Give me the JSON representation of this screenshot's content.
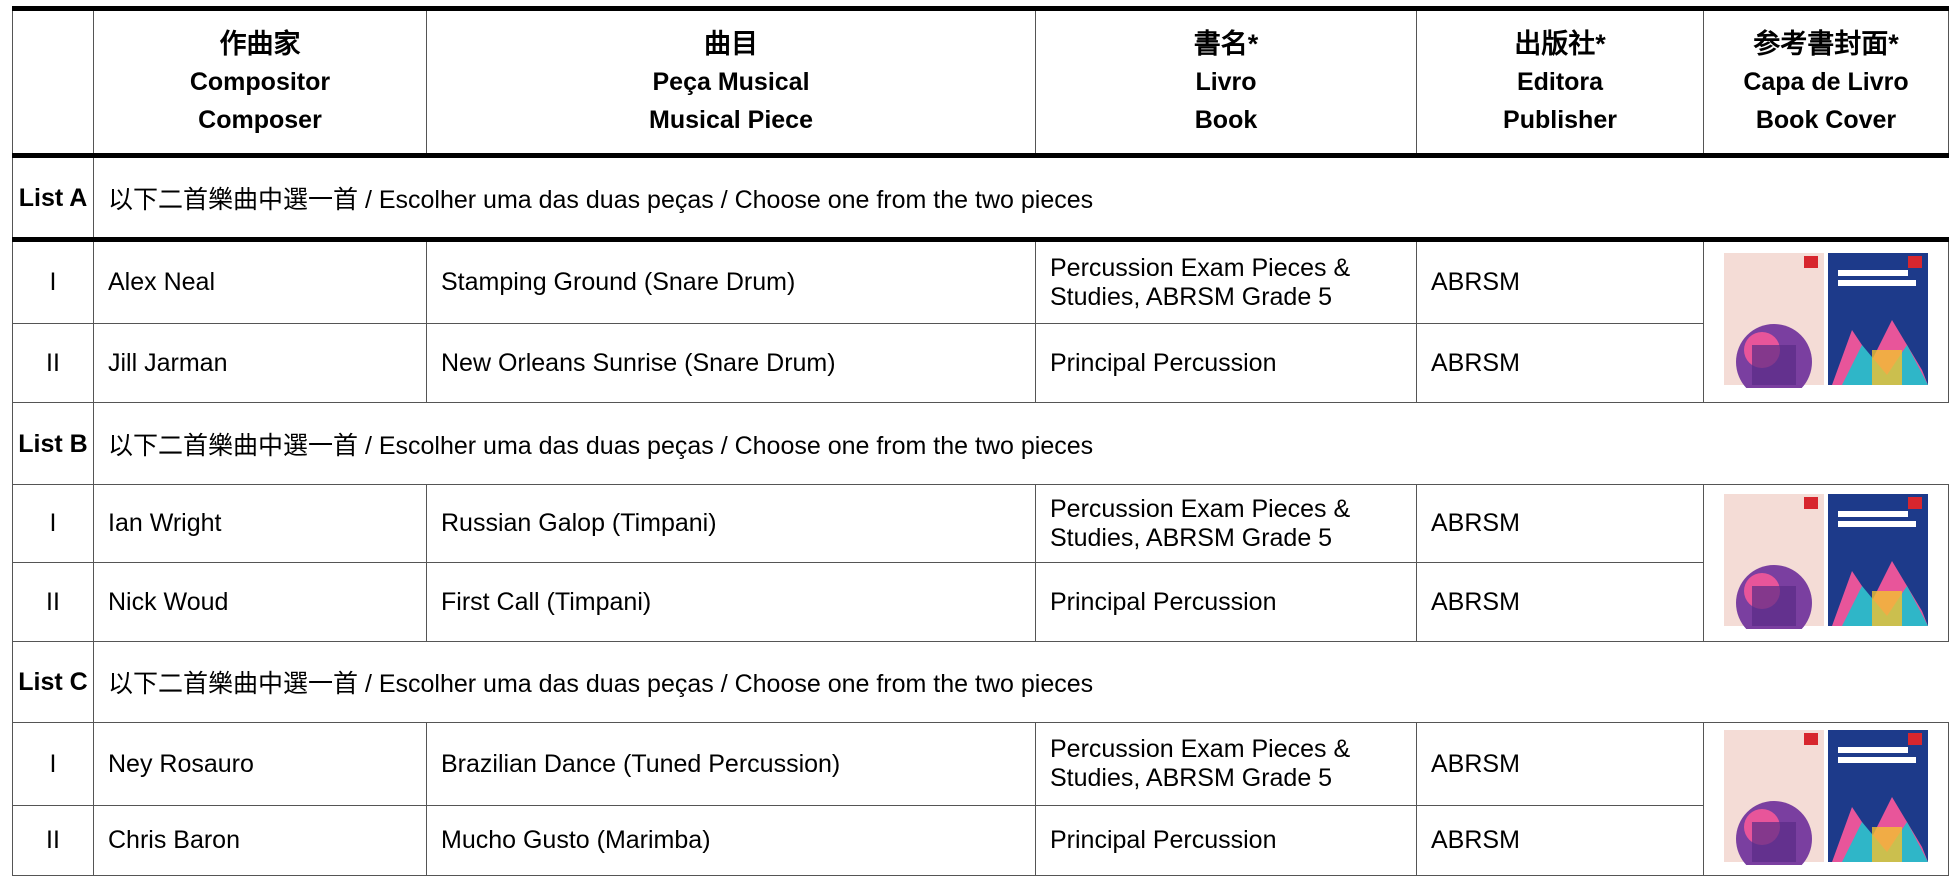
{
  "header": {
    "columns": [
      {
        "zh": "作曲家",
        "pt": "Compositor",
        "en": "Composer"
      },
      {
        "zh": "曲目",
        "pt": "Peça Musical",
        "en": "Musical Piece"
      },
      {
        "zh": "書名*",
        "pt": "Livro",
        "en": "Book"
      },
      {
        "zh": "出版社*",
        "pt": "Editora",
        "en": "Publisher"
      },
      {
        "zh": "参考書封面*",
        "pt": "Capa de Livro",
        "en": "Book Cover"
      }
    ]
  },
  "sections": [
    {
      "label": "List A",
      "instruction": "以下二首樂曲中選一首 / Escolher uma das duas peças / Choose one from the two pieces",
      "rows": [
        [
          "I",
          "Alex Neal",
          "Stamping Ground (Snare Drum)",
          "Percussion Exam Pieces & Studies, ABRSM Grade 5",
          "ABRSM"
        ],
        [
          "II",
          "Jill Jarman",
          "New Orleans Sunrise (Snare Drum)",
          "Principal Percussion",
          "ABRSM"
        ]
      ]
    },
    {
      "label": "List B",
      "instruction": "以下二首樂曲中選一首 / Escolher uma das duas peças / Choose one from the two pieces",
      "rows": [
        [
          "I",
          "Ian Wright",
          "Russian Galop (Timpani)",
          "Percussion Exam Pieces & Studies, ABRSM Grade 5",
          "ABRSM"
        ],
        [
          "II",
          "Nick Woud",
          "First Call (Timpani)",
          "Principal Percussion",
          "ABRSM"
        ]
      ]
    },
    {
      "label": "List C",
      "instruction": "以下二首樂曲中選一首 / Escolher uma das duas peças / Choose one from the two pieces",
      "rows": [
        [
          "I",
          "Ney Rosauro",
          "Brazilian Dance (Tuned Percussion)",
          "Percussion Exam Pieces & Studies, ABRSM Grade 5",
          "ABRSM"
        ],
        [
          "II",
          "Chris Baron",
          "Mucho Gusto (Marimba)",
          "Principal Percussion",
          "ABRSM"
        ]
      ]
    }
  ]
}
